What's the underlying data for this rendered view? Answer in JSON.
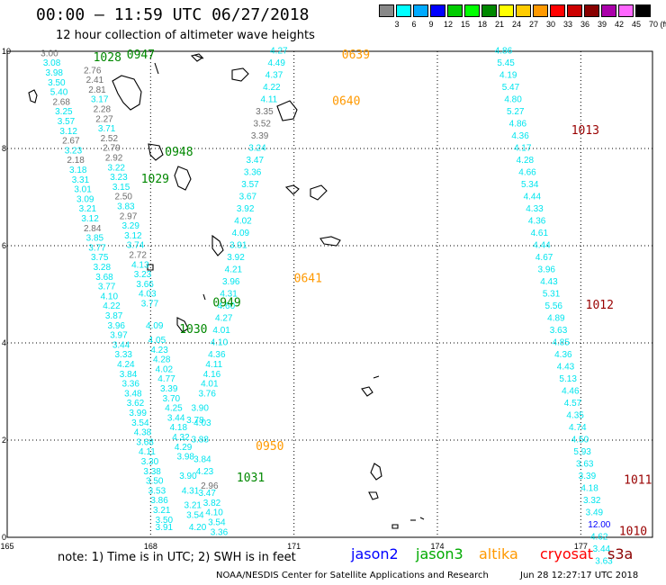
{
  "header": {
    "title": "00:00 – 11:59 UTC 06/27/2018",
    "subtitle": "12 hour collection of altimeter wave heights"
  },
  "legend": {
    "unit": "(ft)",
    "bins": [
      {
        "label": "3",
        "color": "#888888"
      },
      {
        "label": "6",
        "color": "#00ffff"
      },
      {
        "label": "9",
        "color": "#00aaff"
      },
      {
        "label": "12",
        "color": "#0000ff"
      },
      {
        "label": "15",
        "color": "#00cc00"
      },
      {
        "label": "18",
        "color": "#00ff00"
      },
      {
        "label": "21",
        "color": "#008800"
      },
      {
        "label": "24",
        "color": "#ffff00"
      },
      {
        "label": "27",
        "color": "#ffcc00"
      },
      {
        "label": "30",
        "color": "#ff9900"
      },
      {
        "label": "33",
        "color": "#ff0000"
      },
      {
        "label": "36",
        "color": "#cc0000"
      },
      {
        "label": "39",
        "color": "#880000"
      },
      {
        "label": "42",
        "color": "#aa00aa"
      },
      {
        "label": "45",
        "color": "#ff66ff"
      },
      {
        "label": "70",
        "color": "#000000"
      }
    ]
  },
  "axes": {
    "x_ticks": [
      "165",
      "168",
      "171",
      "174",
      "177"
    ],
    "y_ticks": [
      "0",
      "2",
      "4",
      "6",
      "8",
      "10"
    ]
  },
  "colors": {
    "cyan": "#00e5ee",
    "gray": "#6e6e6e",
    "blue": "#0000ff",
    "green": "#008800",
    "orange": "#ff9900",
    "darkred": "#990000",
    "red": "#ff0000",
    "brown": "#8b0000"
  },
  "track_labels": [
    {
      "id": "1028",
      "lon": 166.8,
      "lat": 9.8,
      "color": "green"
    },
    {
      "id": "0947",
      "lon": 167.5,
      "lat": 9.85,
      "color": "green"
    },
    {
      "id": "0639",
      "lon": 172.0,
      "lat": 9.85,
      "color": "orange"
    },
    {
      "id": "0640",
      "lon": 171.8,
      "lat": 8.9,
      "color": "orange"
    },
    {
      "id": "1013",
      "lon": 176.8,
      "lat": 8.3,
      "color": "darkred"
    },
    {
      "id": "0948",
      "lon": 168.3,
      "lat": 7.85,
      "color": "green"
    },
    {
      "id": "1029",
      "lon": 167.8,
      "lat": 7.3,
      "color": "green"
    },
    {
      "id": "0641",
      "lon": 171.0,
      "lat": 5.25,
      "color": "orange"
    },
    {
      "id": "0949",
      "lon": 169.3,
      "lat": 4.75,
      "color": "green"
    },
    {
      "id": "1012",
      "lon": 177.1,
      "lat": 4.7,
      "color": "darkred"
    },
    {
      "id": "1030",
      "lon": 168.6,
      "lat": 4.2,
      "color": "green"
    },
    {
      "id": "0950",
      "lon": 170.2,
      "lat": 1.8,
      "color": "orange"
    },
    {
      "id": "1031",
      "lon": 169.8,
      "lat": 1.15,
      "color": "green"
    },
    {
      "id": "1011",
      "lon": 177.9,
      "lat": 1.1,
      "color": "darkred"
    },
    {
      "id": "1010",
      "lon": 177.8,
      "lat": 0.05,
      "color": "darkred"
    }
  ],
  "wave_heights": [
    {
      "v": "3.00",
      "lon": 165.7,
      "lat": 9.9,
      "c": "gray"
    },
    {
      "v": "3.08",
      "lon": 165.75,
      "lat": 9.7,
      "c": "cyan"
    },
    {
      "v": "3.98",
      "lon": 165.8,
      "lat": 9.5,
      "c": "cyan"
    },
    {
      "v": "3.50",
      "lon": 165.85,
      "lat": 9.3,
      "c": "cyan"
    },
    {
      "v": "5.40",
      "lon": 165.9,
      "lat": 9.1,
      "c": "cyan"
    },
    {
      "v": "2.68",
      "lon": 165.95,
      "lat": 8.9,
      "c": "gray"
    },
    {
      "v": "3.25",
      "lon": 166.0,
      "lat": 8.7,
      "c": "cyan"
    },
    {
      "v": "3.57",
      "lon": 166.05,
      "lat": 8.5,
      "c": "cyan"
    },
    {
      "v": "3.12",
      "lon": 166.1,
      "lat": 8.3,
      "c": "cyan"
    },
    {
      "v": "2.67",
      "lon": 166.15,
      "lat": 8.1,
      "c": "gray"
    },
    {
      "v": "3.23",
      "lon": 166.2,
      "lat": 7.9,
      "c": "cyan"
    },
    {
      "v": "2.18",
      "lon": 166.25,
      "lat": 7.7,
      "c": "gray"
    },
    {
      "v": "3.18",
      "lon": 166.3,
      "lat": 7.5,
      "c": "cyan"
    },
    {
      "v": "3.31",
      "lon": 166.35,
      "lat": 7.3,
      "c": "cyan"
    },
    {
      "v": "3.01",
      "lon": 166.4,
      "lat": 7.1,
      "c": "cyan"
    },
    {
      "v": "3.09",
      "lon": 166.45,
      "lat": 6.9,
      "c": "cyan"
    },
    {
      "v": "3.21",
      "lon": 166.5,
      "lat": 6.7,
      "c": "cyan"
    },
    {
      "v": "3.12",
      "lon": 166.55,
      "lat": 6.5,
      "c": "cyan"
    },
    {
      "v": "2.84",
      "lon": 166.6,
      "lat": 6.3,
      "c": "gray"
    },
    {
      "v": "3.85",
      "lon": 166.65,
      "lat": 6.1,
      "c": "cyan"
    },
    {
      "v": "3.77",
      "lon": 166.7,
      "lat": 5.9,
      "c": "cyan"
    },
    {
      "v": "3.75",
      "lon": 166.75,
      "lat": 5.7,
      "c": "cyan"
    },
    {
      "v": "3.28",
      "lon": 166.8,
      "lat": 5.5,
      "c": "cyan"
    },
    {
      "v": "3.68",
      "lon": 166.85,
      "lat": 5.3,
      "c": "cyan"
    },
    {
      "v": "3.77",
      "lon": 166.9,
      "lat": 5.1,
      "c": "cyan"
    },
    {
      "v": "4.10",
      "lon": 166.95,
      "lat": 4.9,
      "c": "cyan"
    },
    {
      "v": "4.22",
      "lon": 167.0,
      "lat": 4.7,
      "c": "cyan"
    },
    {
      "v": "3.87",
      "lon": 167.05,
      "lat": 4.5,
      "c": "cyan"
    },
    {
      "v": "3.96",
      "lon": 167.1,
      "lat": 4.3,
      "c": "cyan"
    },
    {
      "v": "3.97",
      "lon": 167.15,
      "lat": 4.1,
      "c": "cyan"
    },
    {
      "v": "3.44",
      "lon": 167.2,
      "lat": 3.9,
      "c": "cyan"
    },
    {
      "v": "3.33",
      "lon": 167.25,
      "lat": 3.7,
      "c": "cyan"
    },
    {
      "v": "4.24",
      "lon": 167.3,
      "lat": 3.5,
      "c": "cyan"
    },
    {
      "v": "3.84",
      "lon": 167.35,
      "lat": 3.3,
      "c": "cyan"
    },
    {
      "v": "3.36",
      "lon": 167.4,
      "lat": 3.1,
      "c": "cyan"
    },
    {
      "v": "3.48",
      "lon": 167.45,
      "lat": 2.9,
      "c": "cyan"
    },
    {
      "v": "3.62",
      "lon": 167.5,
      "lat": 2.7,
      "c": "cyan"
    },
    {
      "v": "3.99",
      "lon": 167.55,
      "lat": 2.5,
      "c": "cyan"
    },
    {
      "v": "3.54",
      "lon": 167.6,
      "lat": 2.3,
      "c": "cyan"
    },
    {
      "v": "4.38",
      "lon": 167.65,
      "lat": 2.1,
      "c": "cyan"
    },
    {
      "v": "3.68",
      "lon": 167.7,
      "lat": 1.9,
      "c": "cyan"
    },
    {
      "v": "4.11",
      "lon": 167.75,
      "lat": 1.7,
      "c": "cyan"
    },
    {
      "v": "3.30",
      "lon": 167.8,
      "lat": 1.5,
      "c": "cyan"
    },
    {
      "v": "3.38",
      "lon": 167.85,
      "lat": 1.3,
      "c": "cyan"
    },
    {
      "v": "3.50",
      "lon": 167.9,
      "lat": 1.1,
      "c": "cyan"
    },
    {
      "v": "3.53",
      "lon": 167.95,
      "lat": 0.9,
      "c": "cyan"
    },
    {
      "v": "3.86",
      "lon": 168.0,
      "lat": 0.7,
      "c": "cyan"
    },
    {
      "v": "3.21",
      "lon": 168.05,
      "lat": 0.5,
      "c": "cyan"
    },
    {
      "v": "3.50",
      "lon": 168.1,
      "lat": 0.3,
      "c": "cyan"
    },
    {
      "v": "3.91",
      "lon": 168.1,
      "lat": 0.15,
      "c": "cyan"
    },
    {
      "v": "2.76",
      "lon": 166.6,
      "lat": 9.55,
      "c": "gray"
    },
    {
      "v": "2.41",
      "lon": 166.65,
      "lat": 9.35,
      "c": "gray"
    },
    {
      "v": "2.81",
      "lon": 166.7,
      "lat": 9.15,
      "c": "gray"
    },
    {
      "v": "3.17",
      "lon": 166.75,
      "lat": 8.95,
      "c": "cyan"
    },
    {
      "v": "2.28",
      "lon": 166.8,
      "lat": 8.75,
      "c": "gray"
    },
    {
      "v": "2.27",
      "lon": 166.85,
      "lat": 8.55,
      "c": "gray"
    },
    {
      "v": "3.71",
      "lon": 166.9,
      "lat": 8.35,
      "c": "cyan"
    },
    {
      "v": "2.52",
      "lon": 166.95,
      "lat": 8.15,
      "c": "gray"
    },
    {
      "v": "2.79",
      "lon": 167.0,
      "lat": 7.95,
      "c": "gray"
    },
    {
      "v": "2.92",
      "lon": 167.05,
      "lat": 7.75,
      "c": "gray"
    },
    {
      "v": "3.22",
      "lon": 167.1,
      "lat": 7.55,
      "c": "cyan"
    },
    {
      "v": "3.23",
      "lon": 167.15,
      "lat": 7.35,
      "c": "cyan"
    },
    {
      "v": "3.15",
      "lon": 167.2,
      "lat": 7.15,
      "c": "cyan"
    },
    {
      "v": "2.50",
      "lon": 167.25,
      "lat": 6.95,
      "c": "gray"
    },
    {
      "v": "3.83",
      "lon": 167.3,
      "lat": 6.75,
      "c": "cyan"
    },
    {
      "v": "2.97",
      "lon": 167.35,
      "lat": 6.55,
      "c": "gray"
    },
    {
      "v": "3.29",
      "lon": 167.4,
      "lat": 6.35,
      "c": "cyan"
    },
    {
      "v": "3.12",
      "lon": 167.45,
      "lat": 6.15,
      "c": "cyan"
    },
    {
      "v": "3.74",
      "lon": 167.5,
      "lat": 5.95,
      "c": "cyan"
    },
    {
      "v": "2.72",
      "lon": 167.55,
      "lat": 5.75,
      "c": "gray"
    },
    {
      "v": "4.13",
      "lon": 167.6,
      "lat": 5.55,
      "c": "cyan"
    },
    {
      "v": "3.23",
      "lon": 167.65,
      "lat": 5.35,
      "c": "cyan"
    },
    {
      "v": "3.66",
      "lon": 167.7,
      "lat": 5.15,
      "c": "cyan"
    },
    {
      "v": "4.03",
      "lon": 167.75,
      "lat": 4.95,
      "c": "cyan"
    },
    {
      "v": "3.77",
      "lon": 167.8,
      "lat": 4.75,
      "c": "cyan"
    },
    {
      "v": "4.09",
      "lon": 167.9,
      "lat": 4.3,
      "c": "cyan"
    },
    {
      "v": "4.05",
      "lon": 167.95,
      "lat": 4.0,
      "c": "cyan"
    },
    {
      "v": "4.23",
      "lon": 168.0,
      "lat": 3.8,
      "c": "cyan"
    },
    {
      "v": "4.28",
      "lon": 168.05,
      "lat": 3.6,
      "c": "cyan"
    },
    {
      "v": "4.02",
      "lon": 168.1,
      "lat": 3.4,
      "c": "cyan"
    },
    {
      "v": "4.77",
      "lon": 168.15,
      "lat": 3.2,
      "c": "cyan"
    },
    {
      "v": "3.39",
      "lon": 168.2,
      "lat": 3.0,
      "c": "cyan"
    },
    {
      "v": "3.70",
      "lon": 168.25,
      "lat": 2.8,
      "c": "cyan"
    },
    {
      "v": "4.25",
      "lon": 168.3,
      "lat": 2.6,
      "c": "cyan"
    },
    {
      "v": "3.44",
      "lon": 168.35,
      "lat": 2.4,
      "c": "cyan"
    },
    {
      "v": "4.18",
      "lon": 168.4,
      "lat": 2.2,
      "c": "cyan"
    },
    {
      "v": "4.32",
      "lon": 168.45,
      "lat": 2.0,
      "c": "cyan"
    },
    {
      "v": "4.29",
      "lon": 168.5,
      "lat": 1.8,
      "c": "cyan"
    },
    {
      "v": "3.98",
      "lon": 168.55,
      "lat": 1.6,
      "c": "cyan"
    },
    {
      "v": "3.90",
      "lon": 168.6,
      "lat": 1.2,
      "c": "cyan"
    },
    {
      "v": "4.31",
      "lon": 168.65,
      "lat": 0.9,
      "c": "cyan"
    },
    {
      "v": "3.21",
      "lon": 168.7,
      "lat": 0.6,
      "c": "cyan"
    },
    {
      "v": "3.54",
      "lon": 168.75,
      "lat": 0.4,
      "c": "cyan"
    },
    {
      "v": "4.20",
      "lon": 168.8,
      "lat": 0.15,
      "c": "cyan"
    },
    {
      "v": "3.78",
      "lon": 168.75,
      "lat": 2.35,
      "c": "cyan"
    },
    {
      "v": "3.90",
      "lon": 168.85,
      "lat": 2.6,
      "c": "cyan"
    },
    {
      "v": "4.03",
      "lon": 168.9,
      "lat": 2.3,
      "c": "cyan"
    },
    {
      "v": "3.88",
      "lon": 168.85,
      "lat": 1.95,
      "c": "cyan"
    },
    {
      "v": "3.84",
      "lon": 168.9,
      "lat": 1.55,
      "c": "cyan"
    },
    {
      "v": "4.23",
      "lon": 168.95,
      "lat": 1.3,
      "c": "cyan"
    },
    {
      "v": "2.96",
      "lon": 169.05,
      "lat": 1.0,
      "c": "gray"
    },
    {
      "v": "3.47",
      "lon": 169.0,
      "lat": 0.85,
      "c": "cyan"
    },
    {
      "v": "3.82",
      "lon": 169.1,
      "lat": 0.65,
      "c": "cyan"
    },
    {
      "v": "4.10",
      "lon": 169.15,
      "lat": 0.45,
      "c": "cyan"
    },
    {
      "v": "3.54",
      "lon": 169.2,
      "lat": 0.25,
      "c": "cyan"
    },
    {
      "v": "3.36",
      "lon": 169.25,
      "lat": 0.05,
      "c": "cyan"
    },
    {
      "v": "3.76",
      "lon": 169.0,
      "lat": 2.9,
      "c": "cyan"
    },
    {
      "v": "4.01",
      "lon": 169.05,
      "lat": 3.1,
      "c": "cyan"
    },
    {
      "v": "4.16",
      "lon": 169.1,
      "lat": 3.3,
      "c": "cyan"
    },
    {
      "v": "4.11",
      "lon": 169.15,
      "lat": 3.5,
      "c": "cyan"
    },
    {
      "v": "4.36",
      "lon": 169.2,
      "lat": 3.7,
      "c": "cyan"
    },
    {
      "v": "4.10",
      "lon": 169.25,
      "lat": 3.95,
      "c": "cyan"
    },
    {
      "v": "4.01",
      "lon": 169.3,
      "lat": 4.2,
      "c": "cyan"
    },
    {
      "v": "4.27",
      "lon": 169.35,
      "lat": 4.45,
      "c": "cyan"
    },
    {
      "v": "4.60",
      "lon": 169.4,
      "lat": 4.7,
      "c": "cyan"
    },
    {
      "v": "4.31",
      "lon": 169.45,
      "lat": 4.95,
      "c": "cyan"
    },
    {
      "v": "3.96",
      "lon": 169.5,
      "lat": 5.2,
      "c": "cyan"
    },
    {
      "v": "4.21",
      "lon": 169.55,
      "lat": 5.45,
      "c": "cyan"
    },
    {
      "v": "3.92",
      "lon": 169.6,
      "lat": 5.7,
      "c": "cyan"
    },
    {
      "v": "3.91",
      "lon": 169.65,
      "lat": 5.95,
      "c": "cyan"
    },
    {
      "v": "4.09",
      "lon": 169.7,
      "lat": 6.2,
      "c": "cyan"
    },
    {
      "v": "4.02",
      "lon": 169.75,
      "lat": 6.45,
      "c": "cyan"
    },
    {
      "v": "3.92",
      "lon": 169.8,
      "lat": 6.7,
      "c": "cyan"
    },
    {
      "v": "3.67",
      "lon": 169.85,
      "lat": 6.95,
      "c": "cyan"
    },
    {
      "v": "3.57",
      "lon": 169.9,
      "lat": 7.2,
      "c": "cyan"
    },
    {
      "v": "3.36",
      "lon": 169.95,
      "lat": 7.45,
      "c": "cyan"
    },
    {
      "v": "3.47",
      "lon": 170.0,
      "lat": 7.7,
      "c": "cyan"
    },
    {
      "v": "3.24",
      "lon": 170.05,
      "lat": 7.95,
      "c": "cyan"
    },
    {
      "v": "3.39",
      "lon": 170.1,
      "lat": 8.2,
      "c": "gray"
    },
    {
      "v": "3.52",
      "lon": 170.15,
      "lat": 8.45,
      "c": "gray"
    },
    {
      "v": "3.35",
      "lon": 170.2,
      "lat": 8.7,
      "c": "gray"
    },
    {
      "v": "4.11",
      "lon": 170.3,
      "lat": 8.95,
      "c": "cyan"
    },
    {
      "v": "4.22",
      "lon": 170.35,
      "lat": 9.2,
      "c": "cyan"
    },
    {
      "v": "4.37",
      "lon": 170.4,
      "lat": 9.45,
      "c": "cyan"
    },
    {
      "v": "4.49",
      "lon": 170.45,
      "lat": 9.7,
      "c": "cyan"
    },
    {
      "v": "4.27",
      "lon": 170.5,
      "lat": 9.95,
      "c": "cyan"
    },
    {
      "v": "4.86",
      "lon": 175.2,
      "lat": 9.95,
      "c": "cyan"
    },
    {
      "v": "5.45",
      "lon": 175.25,
      "lat": 9.7,
      "c": "cyan"
    },
    {
      "v": "4.19",
      "lon": 175.3,
      "lat": 9.45,
      "c": "cyan"
    },
    {
      "v": "5.47",
      "lon": 175.35,
      "lat": 9.2,
      "c": "cyan"
    },
    {
      "v": "4.80",
      "lon": 175.4,
      "lat": 8.95,
      "c": "cyan"
    },
    {
      "v": "5.27",
      "lon": 175.45,
      "lat": 8.7,
      "c": "cyan"
    },
    {
      "v": "4.86",
      "lon": 175.5,
      "lat": 8.45,
      "c": "cyan"
    },
    {
      "v": "4.36",
      "lon": 175.55,
      "lat": 8.2,
      "c": "cyan"
    },
    {
      "v": "4.17",
      "lon": 175.6,
      "lat": 7.95,
      "c": "cyan"
    },
    {
      "v": "4.28",
      "lon": 175.65,
      "lat": 7.7,
      "c": "cyan"
    },
    {
      "v": "4.66",
      "lon": 175.7,
      "lat": 7.45,
      "c": "cyan"
    },
    {
      "v": "5.34",
      "lon": 175.75,
      "lat": 7.2,
      "c": "cyan"
    },
    {
      "v": "4.44",
      "lon": 175.8,
      "lat": 6.95,
      "c": "cyan"
    },
    {
      "v": "4.33",
      "lon": 175.85,
      "lat": 6.7,
      "c": "cyan"
    },
    {
      "v": "4.36",
      "lon": 175.9,
      "lat": 6.45,
      "c": "cyan"
    },
    {
      "v": "4.61",
      "lon": 175.95,
      "lat": 6.2,
      "c": "cyan"
    },
    {
      "v": "4.44",
      "lon": 176.0,
      "lat": 5.95,
      "c": "cyan"
    },
    {
      "v": "4.67",
      "lon": 176.05,
      "lat": 5.7,
      "c": "cyan"
    },
    {
      "v": "3.96",
      "lon": 176.1,
      "lat": 5.45,
      "c": "cyan"
    },
    {
      "v": "4.43",
      "lon": 176.15,
      "lat": 5.2,
      "c": "cyan"
    },
    {
      "v": "5.31",
      "lon": 176.2,
      "lat": 4.95,
      "c": "cyan"
    },
    {
      "v": "5.56",
      "lon": 176.25,
      "lat": 4.7,
      "c": "cyan"
    },
    {
      "v": "4.89",
      "lon": 176.3,
      "lat": 4.45,
      "c": "cyan"
    },
    {
      "v": "3.63",
      "lon": 176.35,
      "lat": 4.2,
      "c": "cyan"
    },
    {
      "v": "4.85",
      "lon": 176.4,
      "lat": 3.95,
      "c": "cyan"
    },
    {
      "v": "4.36",
      "lon": 176.45,
      "lat": 3.7,
      "c": "cyan"
    },
    {
      "v": "4.43",
      "lon": 176.5,
      "lat": 3.45,
      "c": "cyan"
    },
    {
      "v": "5.13",
      "lon": 176.55,
      "lat": 3.2,
      "c": "cyan"
    },
    {
      "v": "4.46",
      "lon": 176.6,
      "lat": 2.95,
      "c": "cyan"
    },
    {
      "v": "4.57",
      "lon": 176.65,
      "lat": 2.7,
      "c": "cyan"
    },
    {
      "v": "4.35",
      "lon": 176.7,
      "lat": 2.45,
      "c": "cyan"
    },
    {
      "v": "4.74",
      "lon": 176.75,
      "lat": 2.2,
      "c": "cyan"
    },
    {
      "v": "4.50",
      "lon": 176.8,
      "lat": 1.95,
      "c": "cyan"
    },
    {
      "v": "5.93",
      "lon": 176.85,
      "lat": 1.7,
      "c": "cyan"
    },
    {
      "v": "3.63",
      "lon": 176.9,
      "lat": 1.45,
      "c": "cyan"
    },
    {
      "v": "3.39",
      "lon": 176.95,
      "lat": 1.2,
      "c": "cyan"
    },
    {
      "v": "4.18",
      "lon": 177.0,
      "lat": 0.95,
      "c": "cyan"
    },
    {
      "v": "3.32",
      "lon": 177.05,
      "lat": 0.7,
      "c": "cyan"
    },
    {
      "v": "3.49",
      "lon": 177.1,
      "lat": 0.45,
      "c": "cyan"
    },
    {
      "v": "12.00",
      "lon": 177.15,
      "lat": 0.2,
      "c": "blue"
    },
    {
      "v": "4.62",
      "lon": 177.2,
      "lat": -0.05,
      "c": "cyan"
    },
    {
      "v": "3.44",
      "lon": 177.25,
      "lat": -0.3,
      "c": "cyan"
    },
    {
      "v": "3.63",
      "lon": 177.3,
      "lat": -0.55,
      "c": "cyan"
    }
  ],
  "footer": {
    "note": "note:  1) Time is in UTC;  2) SWH is in feet",
    "satellites": [
      {
        "name": "jason2",
        "color": "#0000ff"
      },
      {
        "name": "jason3",
        "color": "#00aa00"
      },
      {
        "name": "altika",
        "color": "#ff9900"
      },
      {
        "name": "cryosat",
        "color": "#ff0000"
      },
      {
        "name": "s3a",
        "color": "#8b0000"
      }
    ],
    "credit": "NOAA/NESDIS Center for Satellite Applications and Research",
    "stamp": "Jun 28 12:27:17 UTC 2018"
  }
}
